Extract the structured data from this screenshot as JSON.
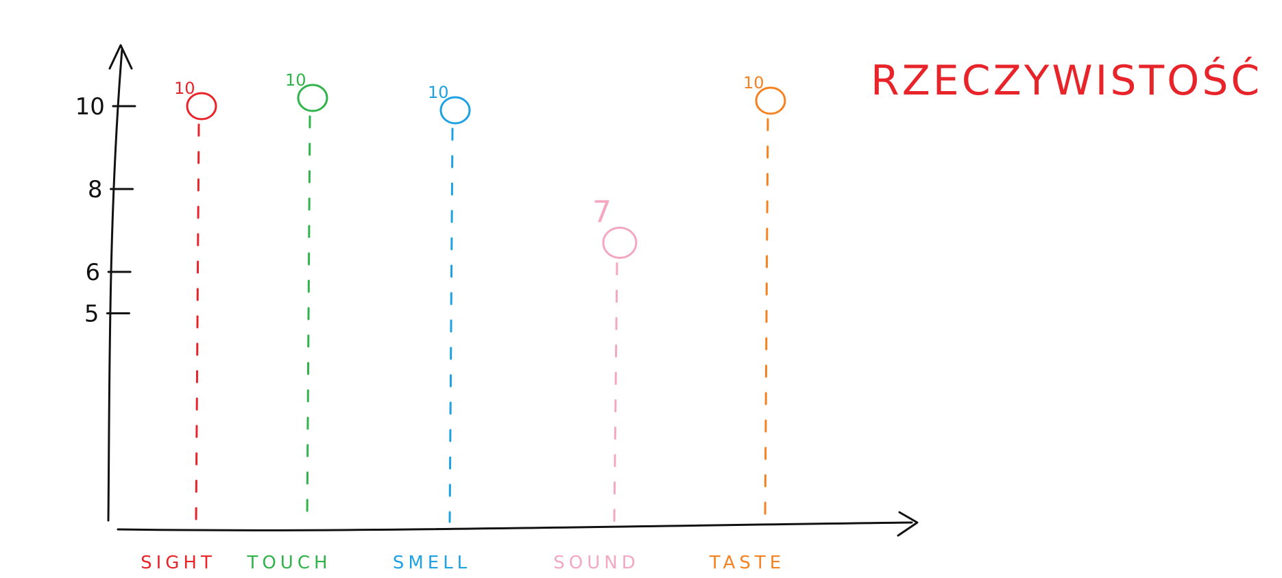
{
  "chart_data": {
    "type": "scatter",
    "title": "RZECZYWISTOŚĆ",
    "title_color": "#e8242b",
    "categories": [
      "SIGHT",
      "TOUCH",
      "SMELL",
      "SOUND",
      "TASTE"
    ],
    "values": [
      10,
      10,
      10,
      7,
      10
    ],
    "value_labels": [
      "10",
      "10",
      "10",
      "7",
      "10"
    ],
    "colors": [
      "#e8242b",
      "#2fb34a",
      "#1ea1e3",
      "#f4a7c3",
      "#f58220"
    ],
    "y_ticks": [
      10,
      8,
      6,
      5
    ],
    "y_tick_labels": [
      "10",
      "8",
      "6",
      "5"
    ],
    "ylim": [
      0,
      10.5
    ],
    "xlabel": "",
    "ylabel": "",
    "grid": false,
    "legend": "none",
    "axis_color": "#111111"
  }
}
